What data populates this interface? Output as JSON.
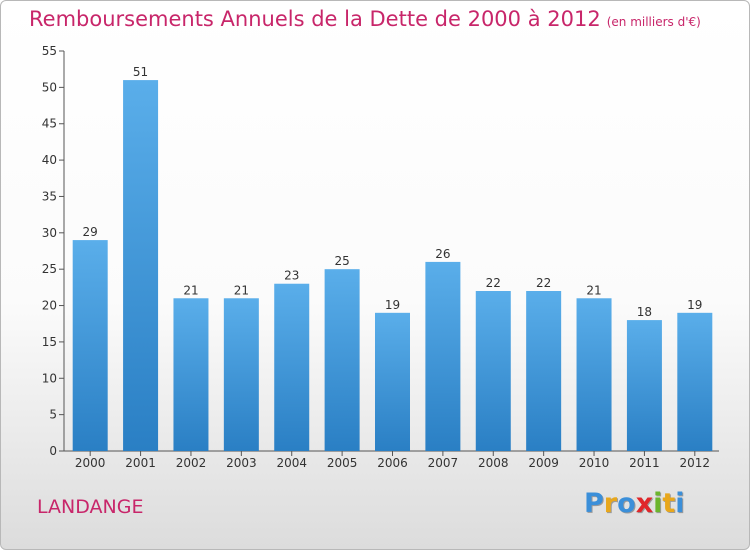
{
  "chart_data": {
    "type": "bar",
    "title": "Remboursements Annuels de la Dette de 2000 à 2012",
    "subtitle": "(en milliers d'€)",
    "categories": [
      "2000",
      "2001",
      "2002",
      "2003",
      "2004",
      "2005",
      "2006",
      "2007",
      "2008",
      "2009",
      "2010",
      "2011",
      "2012"
    ],
    "values": [
      29,
      51,
      21,
      21,
      23,
      25,
      19,
      26,
      22,
      22,
      21,
      18,
      19
    ],
    "ylim": [
      0,
      55
    ],
    "yticks": [
      0,
      5,
      10,
      15,
      20,
      25,
      30,
      35,
      40,
      45,
      50,
      55
    ],
    "xlabel": "",
    "ylabel": "",
    "grid": false,
    "data_labels": true,
    "bar_color_top": "#5aaeea",
    "bar_color_bottom": "#2a7fc4"
  },
  "commune": "LANDANGE",
  "logo": {
    "letters": [
      "P",
      "r",
      "o",
      "x",
      "i",
      "t",
      "i"
    ],
    "colors": [
      "#3b8fd9",
      "#e8a71c",
      "#3b8fd9",
      "#e0262a",
      "#6cb52d",
      "#e8a71c",
      "#3b8fd9"
    ]
  },
  "colors": {
    "accent": "#c8266a",
    "axis": "#555555"
  }
}
